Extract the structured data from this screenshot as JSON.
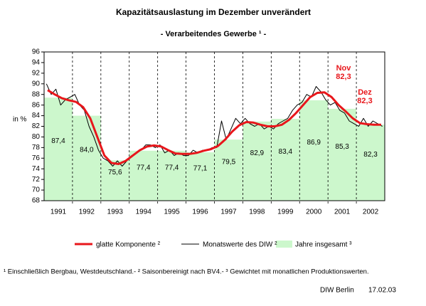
{
  "chart_data": {
    "type": "combo",
    "title": "Kapazitätsauslastung im Dezember unverändert",
    "subtitle": "- Verarbeitendes Gewerbe ¹ -",
    "y_label": "in %",
    "categories": [
      "1991",
      "1992",
      "1993",
      "1994",
      "1995",
      "1996",
      "1997",
      "1998",
      "1999",
      "2000",
      "2001",
      "2002"
    ],
    "xlim": [
      1991,
      2003
    ],
    "ylim": [
      68,
      96
    ],
    "yticks": [
      68,
      70,
      72,
      74,
      76,
      78,
      80,
      82,
      84,
      86,
      88,
      90,
      92,
      94,
      96
    ],
    "series": [
      {
        "name": "Jahre insgesamt ³",
        "type": "bar",
        "color": "#ccf7cc",
        "values": [
          87.4,
          84.0,
          75.6,
          77.4,
          77.4,
          77.1,
          79.5,
          82.9,
          83.4,
          86.9,
          85.3,
          82.3
        ],
        "value_labels": [
          "87,4",
          "84,0",
          "75,6",
          "77,4",
          "77,4",
          "77,1",
          "79,5",
          "82,9",
          "83,4",
          "86,9",
          "85,3",
          "82,3"
        ]
      },
      {
        "name": "glatte Komponente ²",
        "type": "line",
        "color": "#e8161b",
        "width": 3,
        "x": [
          1991.125,
          1991.375,
          1991.625,
          1991.875,
          1992.125,
          1992.375,
          1992.625,
          1992.875,
          1993.125,
          1993.375,
          1993.625,
          1993.875,
          1994.125,
          1994.375,
          1994.625,
          1994.875,
          1995.125,
          1995.375,
          1995.625,
          1995.875,
          1996.125,
          1996.375,
          1996.625,
          1996.875,
          1997.125,
          1997.375,
          1997.625,
          1997.875,
          1998.125,
          1998.375,
          1998.625,
          1998.875,
          1999.125,
          1999.375,
          1999.625,
          1999.875,
          2000.125,
          2000.375,
          2000.625,
          2000.875,
          2001.125,
          2001.375,
          2001.625,
          2001.875,
          2002.125,
          2002.375,
          2002.625,
          2002.875
        ],
        "values": [
          88.8,
          88.0,
          87.3,
          86.9,
          86.6,
          85.6,
          83.5,
          80.0,
          76.5,
          75.1,
          74.9,
          75.5,
          76.5,
          77.5,
          78.2,
          78.4,
          78.2,
          77.5,
          76.9,
          76.8,
          76.8,
          77.0,
          77.4,
          77.7,
          78.3,
          79.5,
          81.0,
          82.2,
          82.8,
          82.7,
          82.3,
          82.0,
          82.0,
          82.3,
          83.2,
          84.5,
          86.0,
          87.5,
          88.3,
          88.4,
          87.5,
          86.0,
          84.8,
          83.5,
          82.6,
          82.4,
          82.3,
          82.3
        ]
      },
      {
        "name": "Monatswerte des DIW ²",
        "type": "line",
        "color": "#000000",
        "width": 1,
        "x": [
          1991.083,
          1991.25,
          1991.417,
          1991.583,
          1991.75,
          1991.917,
          1992.083,
          1992.25,
          1992.417,
          1992.583,
          1992.75,
          1992.917,
          1993.083,
          1993.25,
          1993.417,
          1993.583,
          1993.75,
          1993.917,
          1994.083,
          1994.25,
          1994.417,
          1994.583,
          1994.75,
          1994.917,
          1995.083,
          1995.25,
          1995.417,
          1995.583,
          1995.75,
          1995.917,
          1996.083,
          1996.25,
          1996.417,
          1996.583,
          1996.75,
          1996.917,
          1997.083,
          1997.25,
          1997.417,
          1997.583,
          1997.75,
          1997.917,
          1998.083,
          1998.25,
          1998.417,
          1998.583,
          1998.75,
          1998.917,
          1999.083,
          1999.25,
          1999.417,
          1999.583,
          1999.75,
          1999.917,
          2000.083,
          2000.25,
          2000.417,
          2000.583,
          2000.75,
          2000.917,
          2001.083,
          2001.25,
          2001.417,
          2001.583,
          2001.75,
          2001.917,
          2002.083,
          2002.25,
          2002.417,
          2002.583,
          2002.75,
          2002.917
        ],
        "values": [
          90.0,
          88.0,
          89.0,
          86.0,
          87.0,
          87.5,
          88.0,
          86.0,
          85.0,
          82.0,
          80.0,
          77.5,
          76.0,
          75.5,
          74.5,
          75.5,
          74.5,
          75.5,
          76.5,
          77.0,
          77.5,
          78.5,
          78.5,
          78.0,
          78.5,
          77.0,
          77.5,
          76.5,
          77.0,
          76.5,
          76.5,
          77.5,
          77.0,
          77.5,
          77.5,
          78.0,
          78.0,
          83.0,
          79.5,
          81.5,
          83.5,
          82.5,
          83.5,
          82.5,
          82.0,
          82.5,
          81.5,
          82.0,
          81.5,
          82.5,
          83.0,
          83.5,
          85.0,
          86.0,
          86.5,
          88.0,
          87.5,
          89.5,
          88.5,
          87.0,
          86.0,
          86.5,
          85.0,
          84.5,
          83.0,
          82.5,
          82.0,
          83.5,
          82.0,
          83.0,
          82.5,
          82.0
        ]
      }
    ],
    "annotations": [
      "Nov",
      "82,3",
      "Dez",
      "82,3"
    ],
    "footnote": "¹ Einschließlich Bergbau, Westdeutschland.- ² Saisonbereinigt nach BV4.- ³ Gewichtet mit monatlichen Produktionswerten.",
    "source": "DIW Berlin",
    "date": "17.02.03"
  }
}
